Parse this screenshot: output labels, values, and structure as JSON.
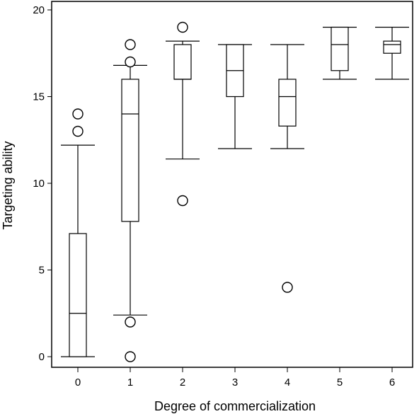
{
  "chart_data": {
    "type": "box",
    "title": "",
    "xlabel": "Degree of commercialization",
    "ylabel": "Targeting ability",
    "categories": [
      "0",
      "1",
      "2",
      "3",
      "4",
      "5",
      "6"
    ],
    "yticks": [
      "0",
      "5",
      "10",
      "15",
      "20"
    ],
    "ylim": [
      -0.6,
      20.2
    ],
    "grid": false,
    "boxes": [
      {
        "category": "0",
        "whisker_low": 0,
        "q1": 0,
        "median": 2.5,
        "q3": 7.1,
        "whisker_high": 12.2,
        "outliers": [
          13,
          14
        ]
      },
      {
        "category": "1",
        "whisker_low": 2.4,
        "q1": 7.8,
        "median": 14,
        "q3": 16,
        "whisker_high": 16.8,
        "outliers": [
          0,
          2,
          17,
          18
        ]
      },
      {
        "category": "2",
        "whisker_low": 11.4,
        "q1": 16,
        "median": 16,
        "q3": 18,
        "whisker_high": 18.2,
        "outliers": [
          9,
          19
        ]
      },
      {
        "category": "3",
        "whisker_low": 12,
        "q1": 15,
        "median": 16.5,
        "q3": 18,
        "whisker_high": 18,
        "outliers": []
      },
      {
        "category": "4",
        "whisker_low": 12,
        "q1": 13.3,
        "median": 15,
        "q3": 16,
        "whisker_high": 18,
        "outliers": [
          4
        ]
      },
      {
        "category": "5",
        "whisker_low": 16,
        "q1": 16.5,
        "median": 18,
        "q3": 19,
        "whisker_high": 19,
        "outliers": []
      },
      {
        "category": "6",
        "whisker_low": 16,
        "q1": 17.5,
        "median": 18,
        "q3": 18.2,
        "whisker_high": 19,
        "outliers": []
      }
    ],
    "colors": {
      "stroke": "#000000",
      "background": "#ffffff"
    }
  }
}
